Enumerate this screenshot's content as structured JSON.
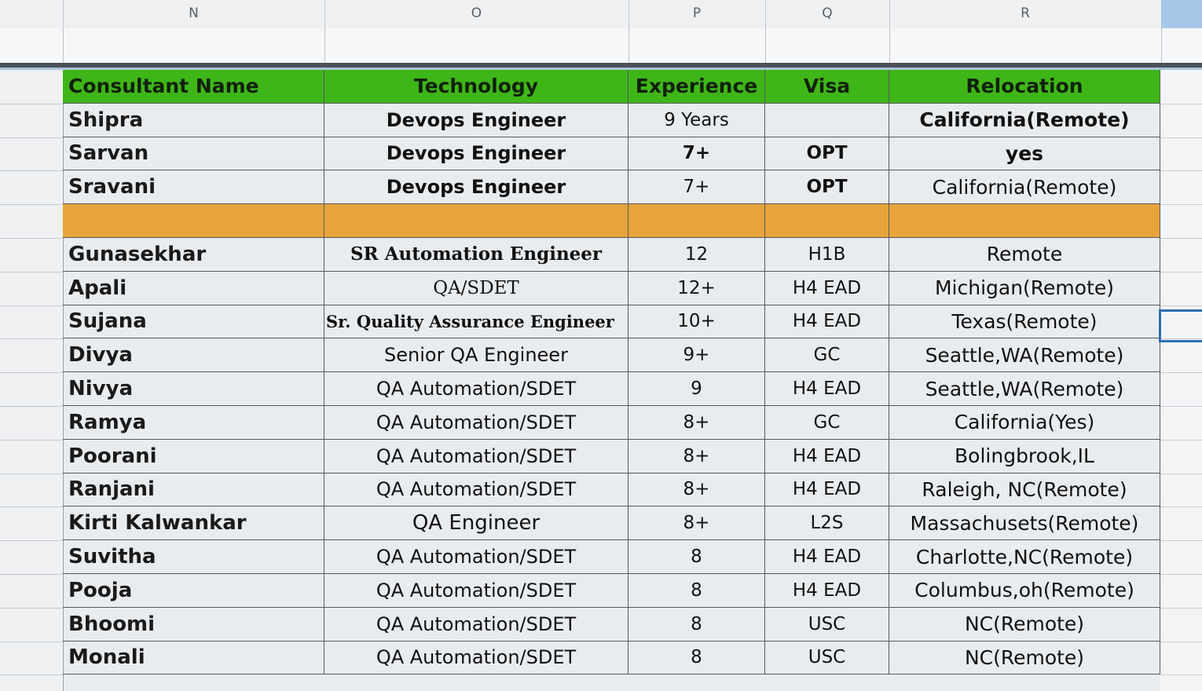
{
  "column_letters": [
    "N",
    "O",
    "P",
    "Q",
    "R"
  ],
  "header": {
    "name": "Consultant Name",
    "technology": "Technology",
    "experience": "Experience",
    "visa": "Visa",
    "relocation": "Relocation"
  },
  "colors": {
    "header_green": "#3fb618",
    "separator_orange": "#e8a43a",
    "selection_blue": "#2f6fb0"
  },
  "rows_top": [
    {
      "name": "Shipra",
      "technology": "Devops Engineer",
      "experience": "9 Years",
      "visa": "",
      "relocation": "California(Remote)"
    },
    {
      "name": "Sarvan",
      "technology": "Devops Engineer",
      "experience": "7+",
      "visa": "OPT",
      "relocation": "yes"
    },
    {
      "name": "Sravani",
      "technology": "Devops Engineer",
      "experience": "7+",
      "visa": "OPT",
      "relocation": "California(Remote)"
    }
  ],
  "rows_bottom": [
    {
      "name": "Gunasekhar",
      "technology": "SR Automation Engineer",
      "experience": "12",
      "visa": "H1B",
      "relocation": "Remote"
    },
    {
      "name": "Apali",
      "technology": "QA/SDET",
      "experience": "12+",
      "visa": "H4 EAD",
      "relocation": "Michigan(Remote)"
    },
    {
      "name": "Sujana",
      "technology": "Sr. Quality Assurance Engineer",
      "experience": "10+",
      "visa": "H4 EAD",
      "relocation": "Texas(Remote)"
    },
    {
      "name": "Divya",
      "technology": "Senior QA Engineer",
      "experience": "9+",
      "visa": "GC",
      "relocation": "Seattle,WA(Remote)"
    },
    {
      "name": "Nivya",
      "technology": "QA Automation/SDET",
      "experience": "9",
      "visa": "H4 EAD",
      "relocation": "Seattle,WA(Remote)"
    },
    {
      "name": "Ramya",
      "technology": "QA Automation/SDET",
      "experience": "8+",
      "visa": "GC",
      "relocation": "California(Yes)"
    },
    {
      "name": "Poorani",
      "technology": "QA Automation/SDET",
      "experience": "8+",
      "visa": "H4 EAD",
      "relocation": "Bolingbrook,IL"
    },
    {
      "name": "Ranjani",
      "technology": "QA Automation/SDET",
      "experience": "8+",
      "visa": "H4 EAD",
      "relocation": "Raleigh, NC(Remote)"
    },
    {
      "name": "Kirti Kalwankar",
      "technology": "QA Engineer",
      "experience": "8+",
      "visa": "L2S",
      "relocation": "Massachusets(Remote)"
    },
    {
      "name": "Suvitha",
      "technology": "QA Automation/SDET",
      "experience": "8",
      "visa": "H4 EAD",
      "relocation": "Charlotte,NC(Remote)"
    },
    {
      "name": "Pooja",
      "technology": "QA Automation/SDET",
      "experience": "8",
      "visa": "H4 EAD",
      "relocation": "Columbus,oh(Remote)"
    },
    {
      "name": "Bhoomi",
      "technology": "QA Automation/SDET",
      "experience": "8",
      "visa": "USC",
      "relocation": "NC(Remote)"
    },
    {
      "name": "Monali",
      "technology": "QA Automation/SDET",
      "experience": "8",
      "visa": "USC",
      "relocation": "NC(Remote)"
    }
  ]
}
